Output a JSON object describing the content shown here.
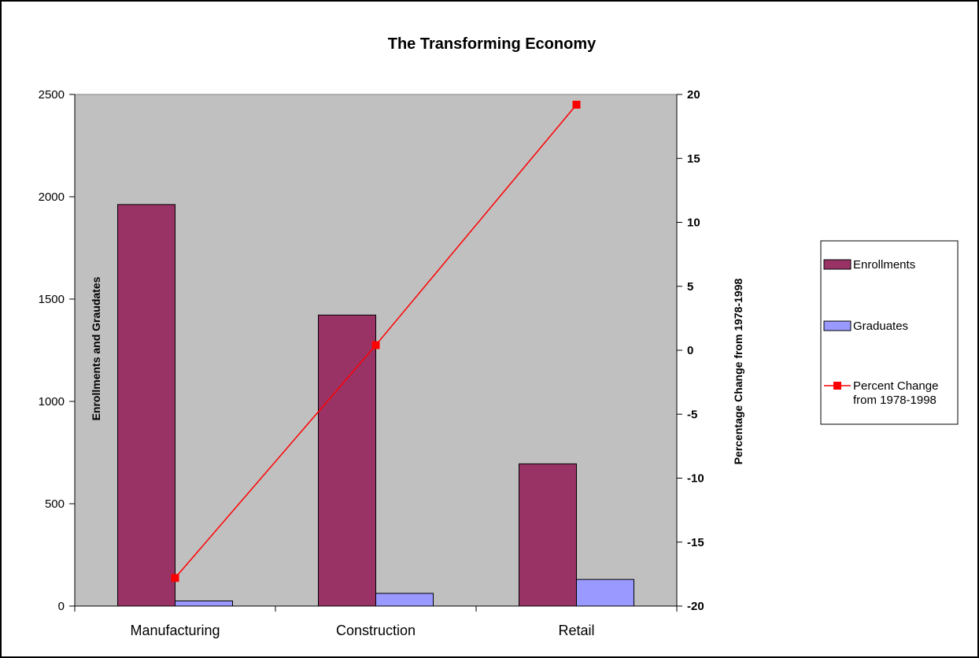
{
  "chart_data": {
    "type": "bar",
    "title": "The Transforming Economy",
    "categories": [
      "Manufacturing",
      "Construction",
      "Retail"
    ],
    "ylabel": "Enrollments and Graudates",
    "y2label": "Percentage Change from 1978-1998",
    "ylim": [
      0,
      2500
    ],
    "y2lim": [
      -20,
      20
    ],
    "yticks": [
      0,
      500,
      1000,
      1500,
      2000,
      2500
    ],
    "y2ticks": [
      -20,
      -15,
      -10,
      -5,
      0,
      5,
      10,
      15,
      20
    ],
    "grid": false,
    "plot_background": "#c0c0c0",
    "legend_position": "right",
    "series": [
      {
        "name": "Enrollments",
        "kind": "bar",
        "axis": "left",
        "color": "#993366",
        "values": [
          1962,
          1422,
          695
        ]
      },
      {
        "name": "Graduates",
        "kind": "bar",
        "axis": "left",
        "color": "#9999ff",
        "values": [
          25,
          62,
          130
        ]
      },
      {
        "name": "Percent Change from 1978-1998",
        "legend_lines": [
          "Percent Change",
          "from 1978-1998"
        ],
        "kind": "line",
        "axis": "right",
        "color": "#ff0000",
        "values": [
          -17.8,
          0.4,
          19.2
        ]
      }
    ]
  }
}
